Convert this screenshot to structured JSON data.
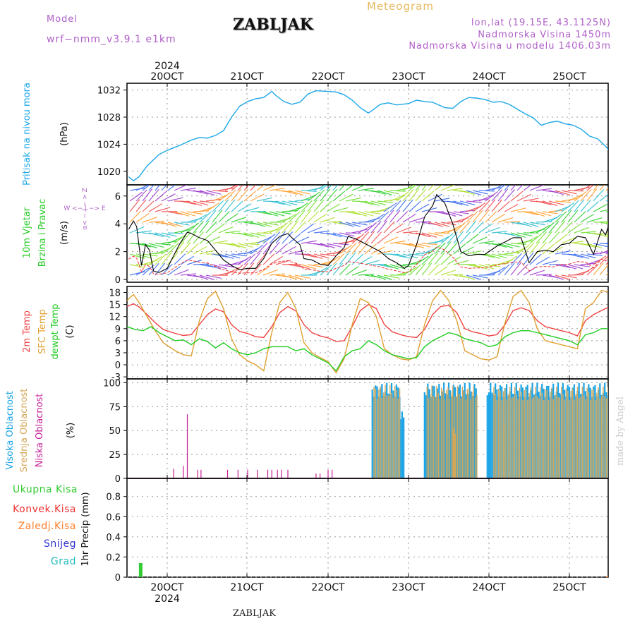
{
  "header": {
    "station": "ZABLJAK",
    "meteogram": "Meteogram",
    "model_label": "Model",
    "model_name": "wrf−nmm_v3.9.1  e1km",
    "lonlat": "lon,lat (19.15E, 43.1125N)",
    "elevation": "Nadmorska Visina 1450m",
    "model_elevation": "Nadmorska Visina u modelu 1406.03m",
    "footer_station": "ZABLJAK",
    "credit": "made by Angel"
  },
  "colors": {
    "pressure": "#1ba7e8",
    "wind_label": "#22cc22",
    "temp2m": "#ee4444",
    "sfc_temp": "#e0a030",
    "dewpoint": "#22cc22",
    "high_cloud": "#1aa3e6",
    "mid_cloud": "#d4a85a",
    "low_cloud": "#c81e96",
    "total_precip": "#33cc33",
    "conv_precip": "#ee3333",
    "frozen_precip": "#ff7f2a",
    "snow": "#3333cc",
    "hail": "#22bbbb",
    "header_purple": "#b060c8",
    "header_orange": "#e8b860"
  },
  "chart_data": [
    {
      "type": "line",
      "panel": "pressure",
      "ylabel_name": "Pritisak na nivou mora",
      "ylabel_unit": "(hPa)",
      "ylim": [
        1018,
        1033
      ],
      "yticks": [
        1020,
        1024,
        1028,
        1032
      ],
      "x_unit": "days since 20 Oct 2024 00Z",
      "xlim": [
        -0.5,
        5.5
      ],
      "grid": true,
      "series": [
        {
          "name": "MSLP",
          "x": [
            -0.48,
            -0.42,
            -0.35,
            -0.25,
            -0.1,
            0,
            0.15,
            0.3,
            0.4,
            0.5,
            0.6,
            0.7,
            0.8,
            0.9,
            1.0,
            1.1,
            1.2,
            1.3,
            1.35,
            1.45,
            1.55,
            1.65,
            1.75,
            1.85,
            2.0,
            2.1,
            2.2,
            2.3,
            2.4,
            2.5,
            2.55,
            2.65,
            2.75,
            2.85,
            3.0,
            3.1,
            3.2,
            3.3,
            3.45,
            3.55,
            3.65,
            3.75,
            3.85,
            3.95,
            4.05,
            4.15,
            4.25,
            4.35,
            4.45,
            4.55,
            4.65,
            4.75,
            4.85,
            4.95,
            5.05,
            5.15,
            5.25,
            5.35,
            5.45,
            5.5
          ],
          "y": [
            1019.2,
            1018.6,
            1019.2,
            1020.8,
            1022.5,
            1023.1,
            1023.8,
            1024.6,
            1025.0,
            1024.9,
            1025.3,
            1026.0,
            1028.0,
            1029.6,
            1030.3,
            1030.7,
            1030.9,
            1031.8,
            1031.2,
            1030.3,
            1029.9,
            1030.2,
            1031.4,
            1031.9,
            1031.8,
            1031.7,
            1031.3,
            1030.5,
            1029.4,
            1028.6,
            1029.0,
            1029.9,
            1030.1,
            1029.8,
            1030.0,
            1030.5,
            1030.3,
            1030.2,
            1029.4,
            1029.3,
            1030.3,
            1030.9,
            1030.8,
            1030.6,
            1030.2,
            1030.3,
            1029.9,
            1029.2,
            1028.5,
            1027.9,
            1026.8,
            1027.2,
            1027.4,
            1027.0,
            1026.8,
            1026.2,
            1025.2,
            1024.8,
            1023.7,
            1023.0
          ]
        }
      ]
    },
    {
      "type": "line",
      "panel": "wind",
      "ylabel_name": "10m Vjetar",
      "ylabel_sub": "Brzina i Pravac",
      "ylabel_unit": "(m/s)",
      "compass": "W  <− | −>  E",
      "compass_ns": "α< − | − > Z",
      "ylim": [
        -0.2,
        6.8
      ],
      "yticks": [
        0,
        2,
        4,
        6
      ],
      "xlim": [
        -0.5,
        5.5
      ],
      "grid": true,
      "series": [
        {
          "name": "wind speed",
          "x": [
            -0.48,
            -0.42,
            -0.38,
            -0.32,
            -0.27,
            -0.22,
            -0.17,
            -0.1,
            0,
            0.15,
            0.25,
            0.3,
            0.4,
            0.5,
            0.6,
            0.7,
            0.8,
            0.9,
            1.0,
            1.1,
            1.2,
            1.3,
            1.4,
            1.5,
            1.55,
            1.65,
            1.7,
            1.8,
            1.9,
            2.0,
            2.1,
            2.2,
            2.25,
            2.35,
            2.45,
            2.55,
            2.65,
            2.75,
            2.85,
            2.95,
            3.0,
            3.1,
            3.2,
            3.3,
            3.35,
            3.45,
            3.55,
            3.65,
            3.75,
            3.85,
            3.95,
            4.0,
            4.1,
            4.2,
            4.3,
            4.4,
            4.5,
            4.6,
            4.7,
            4.8,
            4.9,
            5.0,
            5.1,
            5.2,
            5.3,
            5.4,
            5.45,
            5.5
          ],
          "y": [
            3.6,
            4.2,
            3.8,
            1.0,
            2.5,
            2.1,
            0.6,
            0.5,
            0.8,
            2.5,
            3.4,
            3.3,
            3.0,
            2.8,
            2.1,
            1.4,
            1.0,
            0.7,
            0.8,
            0.8,
            1.5,
            2.6,
            3.1,
            3.3,
            3.0,
            2.5,
            1.5,
            1.4,
            1.1,
            1.0,
            1.7,
            2.3,
            3.1,
            2.9,
            2.6,
            2.3,
            2.0,
            1.5,
            1.2,
            0.8,
            1.0,
            2.5,
            4.5,
            5.3,
            6.1,
            5.5,
            4.0,
            2.0,
            1.7,
            1.8,
            1.8,
            2.0,
            2.4,
            2.7,
            3.0,
            3.0,
            1.2,
            2.0,
            2.1,
            2.0,
            2.5,
            2.6,
            3.1,
            3.0,
            1.8,
            3.6,
            3.2,
            4.1
          ]
        }
      ],
      "barb_colors": [
        "#22cc22",
        "#66dd22",
        "#aadd22",
        "#3366ee",
        "#9933cc",
        "#ee4444",
        "#ff9922",
        "#22bbcc"
      ]
    },
    {
      "type": "line",
      "panel": "temperature",
      "ylabel_names": [
        "2m Temp",
        "SFC Temp",
        "dewpt Temp"
      ],
      "ylabel_unit": "(C)",
      "ylim": [
        -3.5,
        19.5
      ],
      "yticks": [
        -3,
        0,
        3,
        6,
        9,
        12,
        15,
        18
      ],
      "xlim": [
        -0.5,
        5.5
      ],
      "grid": true,
      "series": [
        {
          "name": "2m Temp",
          "x": [
            -0.5,
            -0.42,
            -0.35,
            -0.25,
            -0.15,
            -0.05,
            0.1,
            0.2,
            0.3,
            0.4,
            0.5,
            0.6,
            0.7,
            0.8,
            0.9,
            1.0,
            1.1,
            1.2,
            1.3,
            1.4,
            1.5,
            1.6,
            1.7,
            1.8,
            1.9,
            2.0,
            2.1,
            2.2,
            2.3,
            2.4,
            2.5,
            2.6,
            2.7,
            2.8,
            2.9,
            3.0,
            3.1,
            3.2,
            3.3,
            3.4,
            3.5,
            3.6,
            3.7,
            3.8,
            3.9,
            4.0,
            4.1,
            4.2,
            4.3,
            4.4,
            4.5,
            4.6,
            4.7,
            4.8,
            4.9,
            5.0,
            5.1,
            5.2,
            5.3,
            5.4,
            5.5
          ],
          "y": [
            14.5,
            15.2,
            14.4,
            12.5,
            10.5,
            8.8,
            7.8,
            7.3,
            7.5,
            10.0,
            12.5,
            13.9,
            13.2,
            10.0,
            8.3,
            7.8,
            7.0,
            6.8,
            9.5,
            13.0,
            14.5,
            13.4,
            10.0,
            8.0,
            7.2,
            6.7,
            5.8,
            6.0,
            9.5,
            13.5,
            15.0,
            14.0,
            10.0,
            8.2,
            7.5,
            7.0,
            6.8,
            8.8,
            12.5,
            14.5,
            14.8,
            13.0,
            9.0,
            8.2,
            7.8,
            7.2,
            7.5,
            10.0,
            13.5,
            14.2,
            13.5,
            11.0,
            9.5,
            9.0,
            8.5,
            8.0,
            7.2,
            11.0,
            12.5,
            13.5,
            14.5
          ]
        },
        {
          "name": "SFC Temp",
          "x": [
            -0.5,
            -0.42,
            -0.35,
            -0.25,
            -0.15,
            -0.05,
            0.1,
            0.2,
            0.3,
            0.4,
            0.5,
            0.6,
            0.7,
            0.8,
            0.9,
            1.0,
            1.1,
            1.2,
            1.3,
            1.4,
            1.5,
            1.6,
            1.7,
            1.8,
            1.9,
            2.0,
            2.1,
            2.2,
            2.3,
            2.4,
            2.5,
            2.6,
            2.7,
            2.8,
            2.9,
            3.0,
            3.1,
            3.2,
            3.3,
            3.4,
            3.5,
            3.6,
            3.7,
            3.8,
            3.9,
            4.0,
            4.1,
            4.2,
            4.3,
            4.4,
            4.5,
            4.6,
            4.7,
            4.8,
            4.9,
            5.0,
            5.1,
            5.2,
            5.3,
            5.4,
            5.5
          ],
          "y": [
            16.0,
            17.5,
            15.5,
            12.0,
            8.5,
            5.5,
            3.5,
            2.5,
            2.2,
            11.0,
            16.5,
            18.3,
            14.0,
            6.5,
            2.5,
            1.0,
            0.0,
            -1.5,
            8.0,
            15.5,
            18.0,
            14.0,
            5.5,
            3.0,
            1.8,
            0.8,
            -2.0,
            1.5,
            10.0,
            16.5,
            15.5,
            12.0,
            4.0,
            2.5,
            1.5,
            1.2,
            2.0,
            10.0,
            16.0,
            18.5,
            16.0,
            11.0,
            3.5,
            2.5,
            1.5,
            1.2,
            2.0,
            10.5,
            17.0,
            18.5,
            15.5,
            9.0,
            6.0,
            5.5,
            5.0,
            4.5,
            4.0,
            14.0,
            15.5,
            18.5,
            18.0
          ]
        },
        {
          "name": "dewpt Temp",
          "x": [
            -0.5,
            -0.4,
            -0.3,
            -0.2,
            -0.1,
            0,
            0.1,
            0.2,
            0.3,
            0.4,
            0.5,
            0.6,
            0.7,
            0.8,
            0.9,
            1.0,
            1.1,
            1.2,
            1.3,
            1.4,
            1.5,
            1.6,
            1.7,
            1.8,
            1.9,
            2.0,
            2.1,
            2.2,
            2.3,
            2.4,
            2.5,
            2.6,
            2.7,
            2.8,
            2.9,
            3.0,
            3.1,
            3.2,
            3.3,
            3.4,
            3.5,
            3.6,
            3.7,
            3.8,
            3.9,
            4.0,
            4.1,
            4.2,
            4.3,
            4.4,
            4.5,
            4.6,
            4.7,
            4.8,
            4.9,
            5.0,
            5.1,
            5.2,
            5.3,
            5.4,
            5.5
          ],
          "y": [
            9.5,
            8.8,
            8.5,
            9.5,
            8.0,
            7.0,
            6.0,
            6.2,
            5.0,
            6.5,
            5.8,
            4.2,
            5.5,
            4.0,
            3.0,
            2.5,
            3.0,
            4.0,
            4.5,
            4.5,
            4.5,
            3.5,
            4.0,
            2.5,
            1.5,
            0.5,
            -1.5,
            2.0,
            3.5,
            4.0,
            6.0,
            5.0,
            3.5,
            2.5,
            2.0,
            1.5,
            1.8,
            4.5,
            6.0,
            7.0,
            8.0,
            7.5,
            6.5,
            6.0,
            5.5,
            4.5,
            5.0,
            7.0,
            8.0,
            8.5,
            8.5,
            8.0,
            7.5,
            7.0,
            6.5,
            6.0,
            5.0,
            7.5,
            8.0,
            9.0,
            9.0
          ]
        }
      ]
    },
    {
      "type": "bar",
      "panel": "cloud",
      "ylabel_names": [
        "Visoka Oblacnost",
        "Srednja Oblacnost",
        "Niska Oblacnost"
      ],
      "ylabel_unit": "(%)",
      "ylim": [
        0,
        104
      ],
      "yticks": [
        0,
        25,
        50,
        75,
        100
      ],
      "xlim": [
        -0.5,
        5.5
      ],
      "grid": true,
      "series": [
        {
          "name": "Visoka Oblacnost",
          "spans": [
            [
              2.55,
              2.9,
              100
            ],
            [
              2.9,
              2.95,
              70
            ],
            [
              3.2,
              3.85,
              100
            ],
            [
              3.98,
              5.5,
              100
            ]
          ]
        },
        {
          "name": "Srednja Oblacnost",
          "spans": [
            [
              2.56,
              2.9,
              98
            ],
            [
              3.22,
              3.85,
              97
            ],
            [
              4.05,
              5.5,
              96
            ],
            [
              3.55,
              3.58,
              55
            ],
            [
              4.15,
              4.2,
              60
            ]
          ]
        },
        {
          "name": "Niska Oblacnost",
          "x": [
            0.08,
            0.2,
            0.25,
            0.38,
            0.42,
            0.75,
            0.88,
            1.0,
            1.12,
            1.25,
            1.3,
            1.37,
            1.42,
            1.5,
            1.85,
            1.9,
            2.0,
            2.05
          ],
          "y": [
            10,
            13,
            67,
            9,
            9,
            9,
            9,
            9,
            9,
            9,
            9,
            9,
            9,
            9,
            5,
            5,
            9,
            9
          ]
        }
      ]
    },
    {
      "type": "bar",
      "panel": "precip",
      "ylabel_names": [
        "Ukupna Kisa",
        "Konvek.Kisa",
        "Zaledj.Kisa",
        "Snijeg",
        "Grad"
      ],
      "ylabel_unit": "1hr Precip (mm)",
      "ylim": [
        0,
        0.98
      ],
      "yticks": [
        0,
        0.2,
        0.4,
        0.6,
        0.8
      ],
      "xlim": [
        -0.5,
        5.5
      ],
      "x_tick_labels": [
        "20OCT",
        "21OCT",
        "22OCT",
        "23OCT",
        "24OCT",
        "25OCT"
      ],
      "year": "2024",
      "grid": true,
      "series": [
        {
          "name": "Ukupna Kisa",
          "x": [
            -0.33
          ],
          "y": [
            0.14
          ]
        },
        {
          "name": "Zaledj.Kisa",
          "x": [
            5.48
          ],
          "y": [
            0.01
          ]
        }
      ]
    }
  ]
}
